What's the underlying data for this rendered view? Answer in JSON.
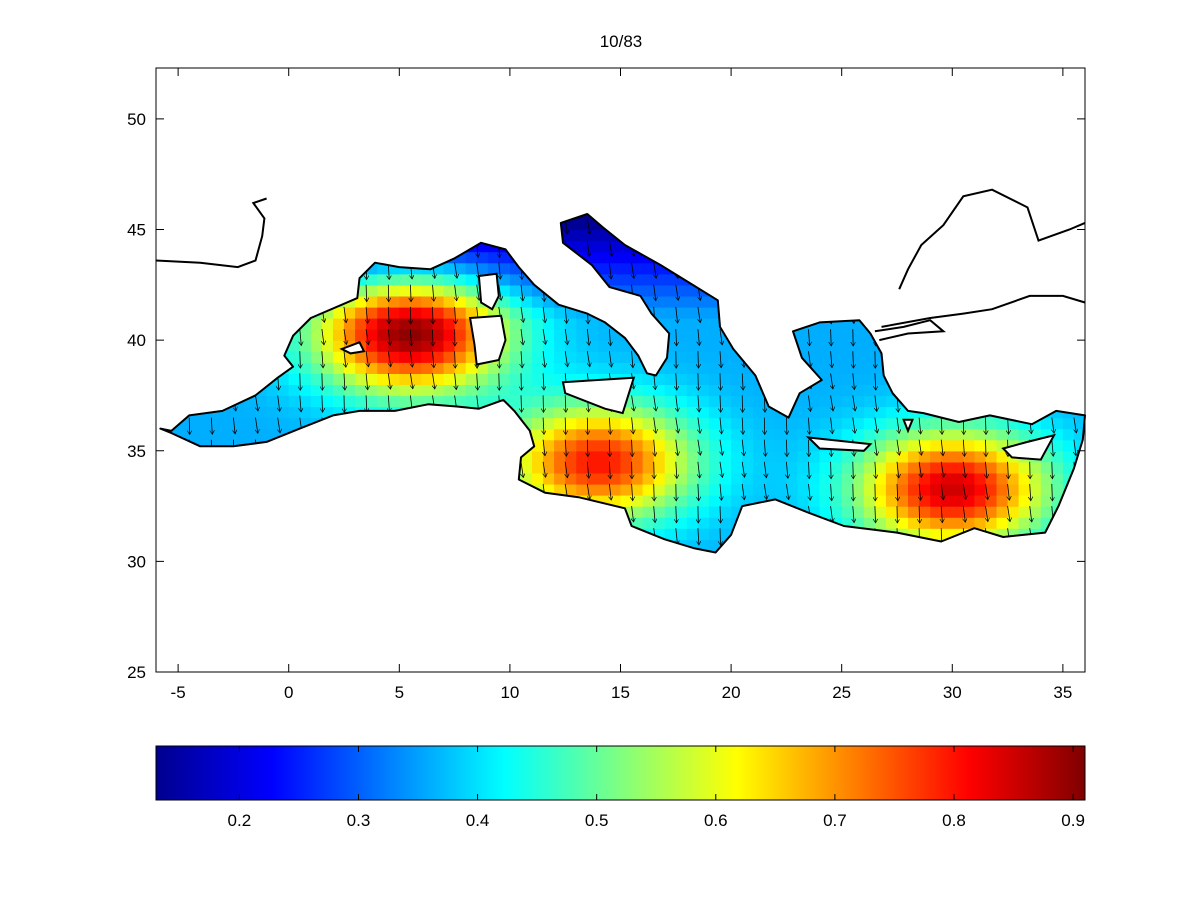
{
  "title": "10/83",
  "map": {
    "type": "geographic-field-with-vectors",
    "region": "Mediterranean Sea",
    "lon_range": [
      -6,
      36
    ],
    "lat_range": [
      25,
      52.3
    ],
    "x_ticks": [
      "-5",
      "0",
      "5",
      "10",
      "15",
      "20",
      "25",
      "30",
      "35"
    ],
    "y_ticks": [
      "25",
      "30",
      "35",
      "40",
      "45",
      "50"
    ],
    "x_tick_values": [
      -5,
      0,
      5,
      10,
      15,
      20,
      25,
      30,
      35
    ],
    "y_tick_values": [
      25,
      30,
      35,
      40,
      45,
      50
    ],
    "vector_direction": "mostly southward / south-southeast",
    "field_maxima": [
      {
        "lon": 5.5,
        "lat": 40.3,
        "value": 0.9
      },
      {
        "lon": 14,
        "lat": 34.5,
        "value": 0.8
      },
      {
        "lon": 30,
        "lat": 33.3,
        "value": 0.85
      }
    ]
  },
  "colorbar": {
    "colormap": "jet",
    "range": [
      0.13,
      0.91
    ],
    "ticks": [
      "0.2",
      "0.3",
      "0.4",
      "0.5",
      "0.6",
      "0.7",
      "0.8",
      "0.9"
    ],
    "tick_values": [
      0.2,
      0.3,
      0.4,
      0.5,
      0.6,
      0.7,
      0.8,
      0.9
    ]
  }
}
